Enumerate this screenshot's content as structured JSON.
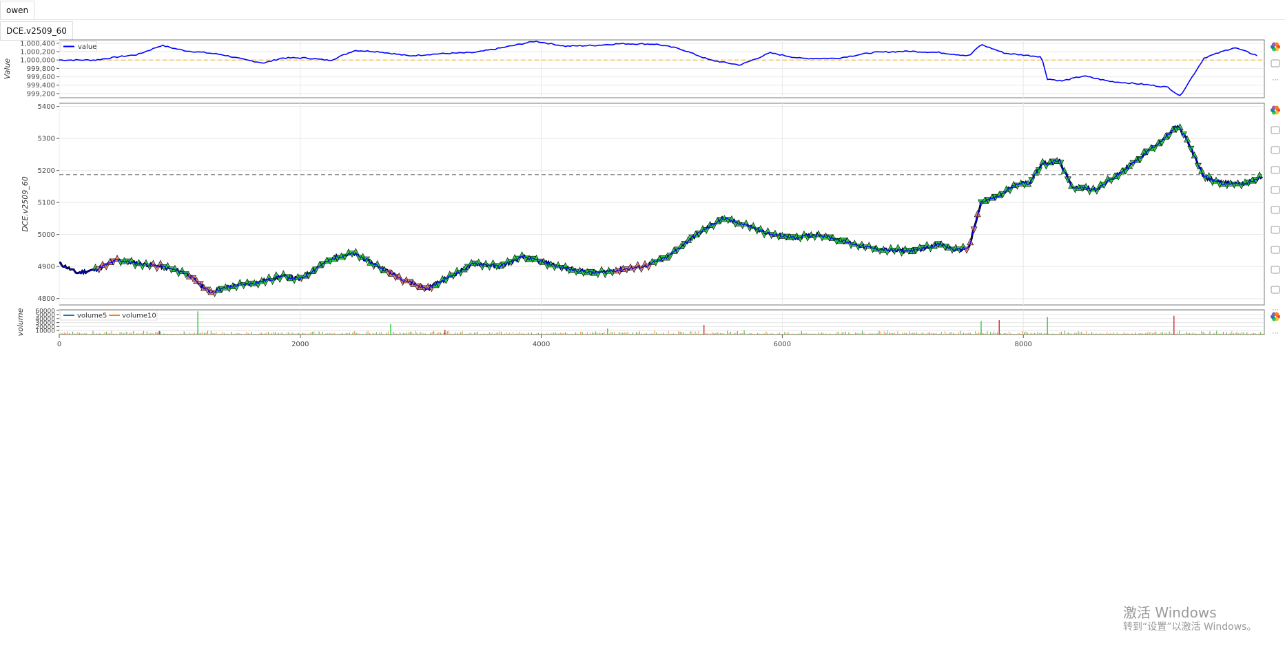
{
  "tabs": [
    {
      "label": "owen"
    },
    {
      "label": "DCE.v2509_60"
    }
  ],
  "toolbar_icons": [
    "bokeh-logo-icon",
    "pan-icon",
    "box-zoom-icon",
    "wheel-zoom-icon",
    "undo-icon",
    "redo-icon",
    "reset-icon",
    "save-icon",
    "hover-icon",
    "crosshair-icon",
    "more-icon"
  ],
  "watermark": {
    "line1": "激活 Windows",
    "line2": "转到“设置”以激活 Windows。"
  },
  "chart_data": [
    {
      "type": "line",
      "ylabel": "Value",
      "legend": [
        {
          "name": "value",
          "color": "#0000ff"
        }
      ],
      "legend_position": "top-left",
      "ylim": [
        999100,
        1000480
      ],
      "yticks": [
        999200,
        999400,
        999600,
        999800,
        1000000,
        1000200,
        1000400
      ],
      "ytick_labels": [
        "999,200",
        "999,400",
        "999,600",
        "999,800",
        "1,000,000",
        "1,000,200",
        "1,000,400"
      ],
      "reference_line": {
        "y": 1000000,
        "color": "#f4b942",
        "style": "dashed"
      },
      "x": [
        0,
        300,
        500,
        650,
        850,
        950,
        1050,
        1200,
        1350,
        1550,
        1700,
        1850,
        2050,
        2250,
        2450,
        2650,
        2900,
        3150,
        3450,
        3650,
        3950,
        4200,
        4450,
        4650,
        4950,
        5150,
        5400,
        5650,
        5900,
        6150,
        6450,
        6750,
        7050,
        7300,
        7550,
        7650,
        7850,
        8150,
        8200,
        8320,
        8500,
        8720,
        9000,
        9200,
        9300,
        9500,
        9750,
        9950
      ],
      "y": [
        1000000,
        1000000,
        1000080,
        1000130,
        1000350,
        1000280,
        1000220,
        1000180,
        1000130,
        1000000,
        999930,
        1000050,
        1000050,
        999990,
        1000230,
        1000200,
        1000100,
        1000150,
        1000180,
        1000280,
        1000450,
        1000330,
        1000350,
        1000390,
        1000380,
        1000270,
        1000000,
        999880,
        1000170,
        1000040,
        1000040,
        1000180,
        1000210,
        1000180,
        1000100,
        1000370,
        1000160,
        1000080,
        999550,
        999500,
        999620,
        999490,
        999420,
        999350,
        999140,
        1000050,
        1000300,
        1000100
      ],
      "grid": true
    },
    {
      "type": "candlestick",
      "ylabel": "DCE.v2509_60",
      "ylim": [
        4780,
        5410
      ],
      "yticks": [
        4800,
        4900,
        5000,
        5100,
        5200,
        5300,
        5400
      ],
      "reference_line": {
        "y": 5187,
        "color": "#888888",
        "style": "dashed"
      },
      "x": [
        0,
        150,
        300,
        480,
        650,
        850,
        1050,
        1250,
        1450,
        1650,
        1850,
        2000,
        2150,
        2300,
        2450,
        2650,
        2850,
        3050,
        3250,
        3450,
        3650,
        3850,
        4050,
        4250,
        4450,
        4650,
        4850,
        5050,
        5250,
        5500,
        5700,
        5900,
        6100,
        6300,
        6500,
        6700,
        6900,
        7100,
        7300,
        7450,
        7550,
        7650,
        7800,
        7950,
        8050,
        8150,
        8300,
        8400,
        8600,
        8800,
        9000,
        9200,
        9280,
        9350,
        9500,
        9650,
        9850,
        9980
      ],
      "y": [
        4910,
        4880,
        4890,
        4920,
        4910,
        4900,
        4880,
        4820,
        4840,
        4850,
        4870,
        4860,
        4900,
        4930,
        4940,
        4900,
        4860,
        4830,
        4870,
        4910,
        4900,
        4930,
        4910,
        4890,
        4880,
        4890,
        4900,
        4930,
        4990,
        5050,
        5030,
        5000,
        4990,
        5000,
        4980,
        4960,
        4950,
        4950,
        4970,
        4950,
        4960,
        5100,
        5120,
        5160,
        5160,
        5220,
        5230,
        5150,
        5140,
        5190,
        5250,
        5310,
        5340,
        5300,
        5180,
        5160,
        5160,
        5180
      ],
      "marker_colors": {
        "buy": "#2ecc40",
        "sell": "#e8826b",
        "line": "#0000ff"
      },
      "grid": true
    },
    {
      "type": "area",
      "ylabel": "volume",
      "legend": [
        {
          "name": "volume5",
          "color": "#1f77b4"
        },
        {
          "name": "volume10",
          "color": "#ff7f0e"
        }
      ],
      "legend_position": "top-left",
      "ylim": [
        0,
        62000
      ],
      "yticks": [
        10000,
        20000,
        30000,
        40000,
        50000,
        60000
      ],
      "ytick_labels": [
        "10000",
        "20000",
        "30000",
        "40000",
        "50000",
        "60000"
      ],
      "spikes": [
        {
          "x": 1150,
          "v": 58000
        },
        {
          "x": 830,
          "v": 9000
        },
        {
          "x": 2750,
          "v": 26000
        },
        {
          "x": 3200,
          "v": 12000
        },
        {
          "x": 4550,
          "v": 15000
        },
        {
          "x": 5350,
          "v": 24000
        },
        {
          "x": 7650,
          "v": 34000
        },
        {
          "x": 7800,
          "v": 36000
        },
        {
          "x": 8200,
          "v": 44000
        },
        {
          "x": 9250,
          "v": 47000
        }
      ],
      "xlim": [
        0,
        10000
      ],
      "xticks": [
        0,
        2000,
        4000,
        6000,
        8000
      ],
      "grid": true
    }
  ]
}
